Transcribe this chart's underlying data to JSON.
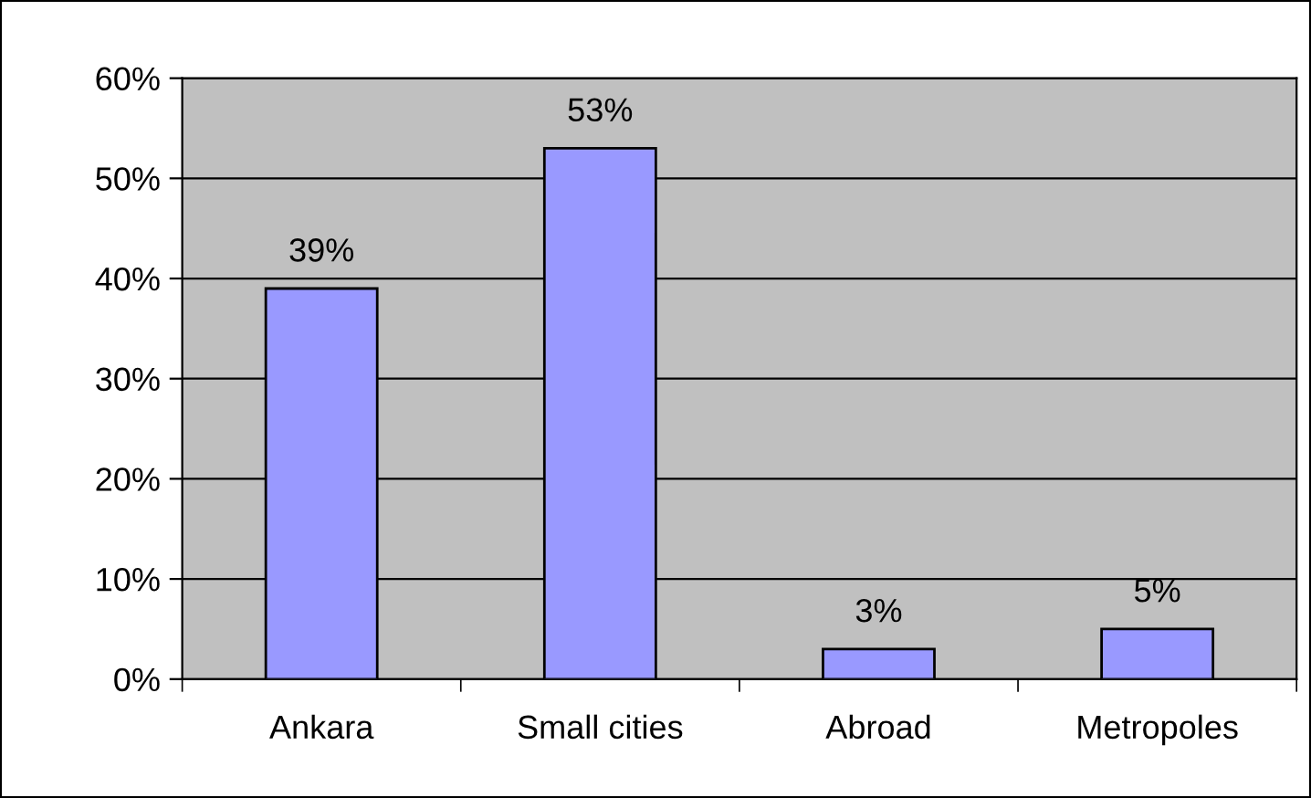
{
  "chart_data": {
    "type": "bar",
    "categories": [
      "Ankara",
      "Small cities",
      "Abroad",
      "Metropoles"
    ],
    "values": [
      39,
      53,
      3,
      5
    ],
    "value_labels": [
      "39%",
      "53%",
      "3%",
      "5%"
    ],
    "color": "#9999ff",
    "ylim": [
      0,
      60
    ],
    "yticks": [
      {
        "value": 0,
        "label": "0%"
      },
      {
        "value": 10,
        "label": "10%"
      },
      {
        "value": 20,
        "label": "20%"
      },
      {
        "value": 30,
        "label": "30%"
      },
      {
        "value": 40,
        "label": "40%"
      },
      {
        "value": 50,
        "label": "50%"
      },
      {
        "value": 60,
        "label": "60%"
      }
    ],
    "grid": "y"
  }
}
